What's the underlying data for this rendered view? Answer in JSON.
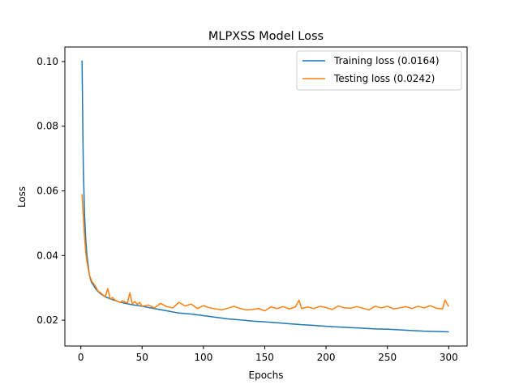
{
  "chart_data": {
    "type": "line",
    "title": "MLPXSS Model Loss",
    "xlabel": "Epochs",
    "ylabel": "Loss",
    "xlim": [
      -13,
      315
    ],
    "ylim": [
      0.012,
      0.1045
    ],
    "xticks": [
      0,
      50,
      100,
      150,
      200,
      250,
      300
    ],
    "yticks": [
      0.02,
      0.04,
      0.06,
      0.08,
      0.1
    ],
    "ytick_labels": [
      "0.02",
      "0.04",
      "0.06",
      "0.08",
      "0.10"
    ],
    "legend_position": "upper-right",
    "grid": false,
    "series": [
      {
        "name": "Training loss (0.0164)",
        "color": "#1f77b4",
        "x": [
          1,
          2,
          3,
          4,
          5,
          6,
          7,
          8,
          9,
          10,
          12,
          14,
          16,
          18,
          20,
          25,
          30,
          35,
          40,
          50,
          60,
          70,
          80,
          90,
          100,
          110,
          120,
          130,
          140,
          150,
          160,
          170,
          180,
          190,
          200,
          210,
          220,
          230,
          240,
          250,
          260,
          270,
          280,
          290,
          300
        ],
        "y": [
          0.1003,
          0.068,
          0.053,
          0.045,
          0.04,
          0.037,
          0.034,
          0.0325,
          0.0315,
          0.031,
          0.0298,
          0.0289,
          0.0282,
          0.0277,
          0.0272,
          0.0265,
          0.0258,
          0.0253,
          0.0249,
          0.0243,
          0.0236,
          0.0229,
          0.0222,
          0.0219,
          0.0214,
          0.0209,
          0.0204,
          0.0201,
          0.0197,
          0.0195,
          0.0192,
          0.0189,
          0.0186,
          0.0184,
          0.0181,
          0.0179,
          0.0177,
          0.0175,
          0.0173,
          0.0172,
          0.017,
          0.0168,
          0.0166,
          0.0165,
          0.0164
        ]
      },
      {
        "name": "Testing loss (0.0242)",
        "color": "#ff7f0e",
        "x": [
          1,
          2,
          3,
          4,
          5,
          6,
          7,
          8,
          9,
          10,
          12,
          14,
          16,
          18,
          20,
          22,
          24,
          26,
          28,
          30,
          32,
          34,
          36,
          38,
          40,
          42,
          44,
          46,
          48,
          50,
          55,
          60,
          65,
          70,
          75,
          80,
          85,
          90,
          95,
          100,
          105,
          110,
          115,
          120,
          125,
          130,
          135,
          140,
          145,
          150,
          155,
          160,
          165,
          170,
          175,
          178,
          180,
          185,
          190,
          195,
          200,
          205,
          210,
          215,
          220,
          225,
          230,
          235,
          240,
          245,
          250,
          255,
          260,
          265,
          270,
          275,
          280,
          285,
          290,
          295,
          297,
          300
        ],
        "y": [
          0.059,
          0.052,
          0.046,
          0.041,
          0.038,
          0.036,
          0.034,
          0.033,
          0.032,
          0.0315,
          0.0305,
          0.029,
          0.0285,
          0.0278,
          0.0273,
          0.0298,
          0.0265,
          0.027,
          0.0262,
          0.0258,
          0.0255,
          0.026,
          0.0256,
          0.0253,
          0.0285,
          0.025,
          0.0258,
          0.0249,
          0.0255,
          0.0243,
          0.0247,
          0.0238,
          0.0252,
          0.0242,
          0.0238,
          0.0255,
          0.0244,
          0.025,
          0.0236,
          0.0245,
          0.0238,
          0.0235,
          0.0232,
          0.0237,
          0.0243,
          0.0236,
          0.0232,
          0.0233,
          0.0236,
          0.0229,
          0.0241,
          0.0236,
          0.0242,
          0.0235,
          0.0241,
          0.0262,
          0.0236,
          0.0241,
          0.0236,
          0.0243,
          0.0239,
          0.0233,
          0.0244,
          0.0238,
          0.0237,
          0.0242,
          0.0237,
          0.0232,
          0.0243,
          0.0238,
          0.0243,
          0.0235,
          0.0238,
          0.0242,
          0.0236,
          0.0243,
          0.0238,
          0.0245,
          0.0237,
          0.0235,
          0.0262,
          0.0242
        ]
      }
    ]
  }
}
